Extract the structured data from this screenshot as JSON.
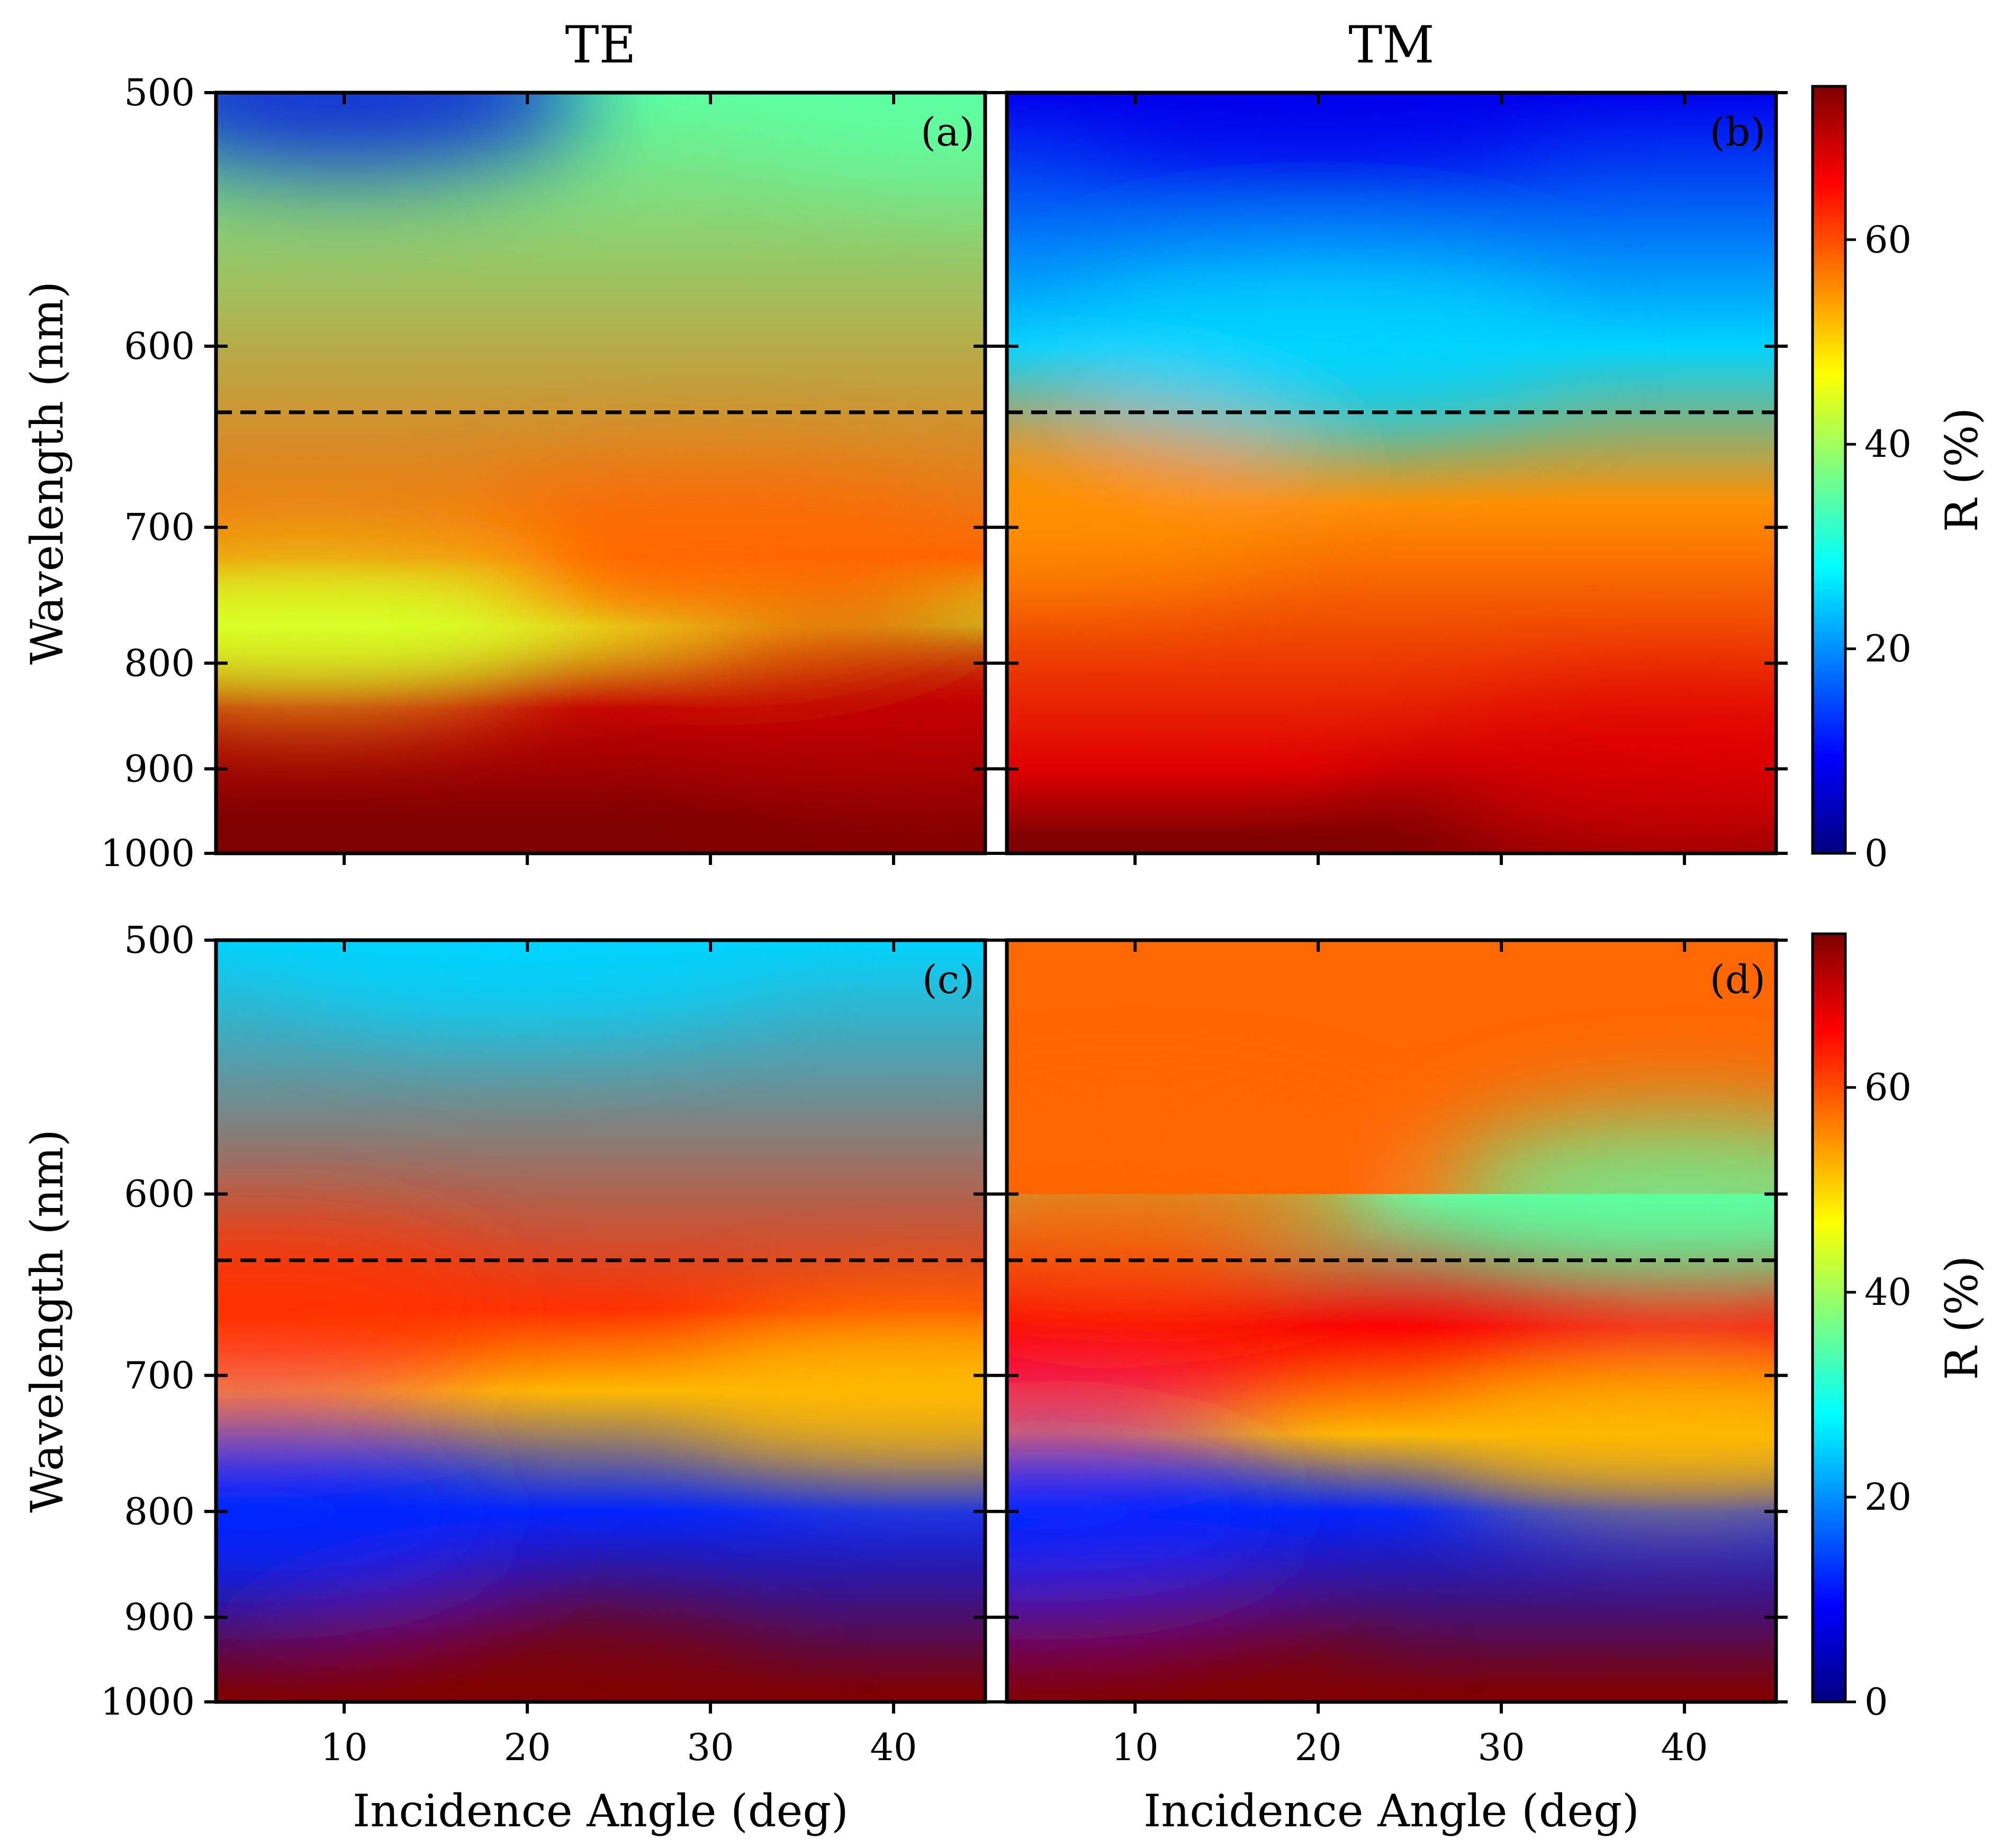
{
  "figure": {
    "column_titles": [
      "TE",
      "TM"
    ],
    "colormap": [
      "#00007f",
      "#0000ff",
      "#007fff",
      "#00ffff",
      "#7fff7f",
      "#ffff00",
      "#ff7f00",
      "#ff0000",
      "#7f0000"
    ],
    "reference_line_wavelength_nm": 633
  },
  "chart_data": [
    {
      "type": "heatmap",
      "panel": "(a)",
      "column": "TE",
      "xlabel": "",
      "ylabel": "Wavelength (nm)",
      "xlim": [
        3,
        45
      ],
      "ylim": [
        1000,
        500
      ],
      "y_scale": "reciprocal",
      "x_ticks": [
        10,
        20,
        30,
        40
      ],
      "x_tick_labels_shown": false,
      "y_ticks": [
        500,
        600,
        700,
        800,
        900,
        1000
      ],
      "reference_line": {
        "y": 633,
        "style": "dashed"
      },
      "colorbar": {
        "label": "",
        "range": [
          0,
          75
        ],
        "ticks": [],
        "visible": false
      },
      "features": [
        {
          "x": 45,
          "y": 960,
          "R": 75
        },
        {
          "x": 42,
          "y": 840,
          "R": 70
        },
        {
          "x": 30,
          "y": 720,
          "R": 58
        },
        {
          "x": 8,
          "y": 770,
          "R": 44
        },
        {
          "x": 10,
          "y": 500,
          "R": 7
        },
        {
          "x": 45,
          "y": 500,
          "R": 35
        }
      ]
    },
    {
      "type": "heatmap",
      "panel": "(b)",
      "column": "TM",
      "xlabel": "",
      "ylabel": "",
      "xlim": [
        3,
        45
      ],
      "ylim": [
        1000,
        500
      ],
      "y_scale": "reciprocal",
      "x_ticks": [
        10,
        20,
        30,
        40
      ],
      "x_tick_labels_shown": false,
      "y_ticks": [
        500,
        600,
        700,
        800,
        900,
        1000
      ],
      "reference_line": {
        "y": 633,
        "style": "dashed"
      },
      "colorbar": {
        "label": "R (%)",
        "range": [
          0,
          75
        ],
        "ticks": [
          0,
          20,
          40,
          60
        ],
        "visible": true
      },
      "features": [
        {
          "x": 35,
          "y": 980,
          "R": 75
        },
        {
          "x": 40,
          "y": 900,
          "R": 68
        },
        {
          "x": 5,
          "y": 685,
          "R": 55
        },
        {
          "x": 20,
          "y": 600,
          "R": 25
        },
        {
          "x": 20,
          "y": 500,
          "R": 8
        }
      ]
    },
    {
      "type": "heatmap",
      "panel": "(c)",
      "column": "TE",
      "xlabel": "Incidence Angle (deg)",
      "ylabel": "Wavelength (nm)",
      "xlim": [
        3,
        45
      ],
      "ylim": [
        1000,
        500
      ],
      "y_scale": "reciprocal",
      "x_ticks": [
        10,
        20,
        30,
        40
      ],
      "x_tick_labels_shown": true,
      "y_ticks": [
        500,
        600,
        700,
        800,
        900,
        1000
      ],
      "reference_line": {
        "y": 633,
        "style": "dashed"
      },
      "colorbar": {
        "label": "",
        "range": [
          0,
          75
        ],
        "ticks": [],
        "visible": false
      },
      "features": [
        {
          "x": 20,
          "y": 990,
          "R": 75
        },
        {
          "x": 5,
          "y": 660,
          "R": 62
        },
        {
          "x": 5,
          "y": 800,
          "R": 12
        },
        {
          "x": 42,
          "y": 710,
          "R": 52
        },
        {
          "x": 20,
          "y": 500,
          "R": 25
        }
      ]
    },
    {
      "type": "heatmap",
      "panel": "(d)",
      "column": "TM",
      "xlabel": "Incidence Angle (deg)",
      "ylabel": "",
      "xlim": [
        3,
        45
      ],
      "ylim": [
        1000,
        500
      ],
      "y_scale": "reciprocal",
      "x_ticks": [
        10,
        20,
        30,
        40
      ],
      "x_tick_labels_shown": true,
      "y_ticks": [
        500,
        600,
        700,
        800,
        900,
        1000
      ],
      "reference_line": {
        "y": 633,
        "style": "dashed"
      },
      "colorbar": {
        "label": "R (%)",
        "range": [
          0,
          75
        ],
        "ticks": [
          0,
          20,
          40,
          60
        ],
        "visible": true
      },
      "features": [
        {
          "x": 10,
          "y": 990,
          "R": 75
        },
        {
          "x": 5,
          "y": 670,
          "R": 66
        },
        {
          "x": 10,
          "y": 600,
          "R": 58
        },
        {
          "x": 5,
          "y": 800,
          "R": 12
        },
        {
          "x": 40,
          "y": 600,
          "R": 35
        },
        {
          "x": 40,
          "y": 740,
          "R": 52
        }
      ]
    }
  ]
}
